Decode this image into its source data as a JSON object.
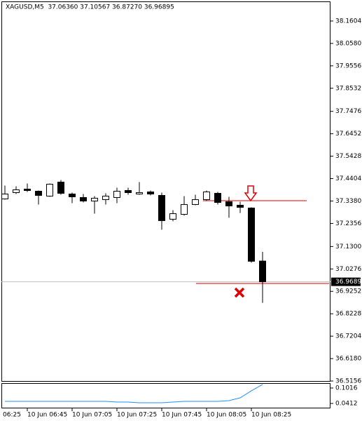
{
  "chart_data": [
    {
      "type": "candlestick",
      "title": "XAGUSD,M5  37.06360 37.10567 36.87270 36.96895",
      "categories": [
        "06:25",
        null,
        null,
        null,
        "10 Jun 06:45",
        null,
        null,
        null,
        "10 Jun 07:05",
        null,
        null,
        null,
        "10 Jun 07:25",
        null,
        null,
        null,
        "10 Jun 07:45",
        null,
        null,
        null,
        "10 Jun 08:05",
        null,
        null,
        null,
        "10 Jun 08:25",
        null
      ],
      "open": [
        null,
        null,
        37.3476,
        37.3764,
        37.3924,
        37.3828,
        37.3604,
        37.4244,
        37.37,
        37.354,
        37.338,
        37.3444,
        37.354,
        37.386,
        37.37,
        37.3796,
        37.3636,
        37.2548,
        37.2772,
        37.322,
        37.3444,
        37.3732,
        37.3348,
        37.3188,
        37.306,
        37.0636
      ],
      "high": [
        null,
        null,
        37.4084,
        37.4052,
        37.418,
        37.386,
        37.418,
        37.434,
        37.3764,
        37.37,
        37.3604,
        37.3732,
        37.3988,
        37.3988,
        37.4244,
        37.386,
        37.3764,
        37.2964,
        37.3604,
        37.3668,
        37.386,
        37.3796,
        37.3572,
        37.3348,
        37.3092,
        37.10567
      ],
      "low": [
        null,
        null,
        37.3444,
        37.37,
        37.3796,
        37.322,
        37.3572,
        37.3668,
        37.3284,
        37.3316,
        37.2804,
        37.322,
        37.3284,
        37.3668,
        37.3668,
        37.3636,
        37.2068,
        37.2452,
        37.2708,
        37.3188,
        37.338,
        37.322,
        37.2612,
        37.2836,
        37.0564,
        36.8727
      ],
      "close": [
        null,
        null,
        37.37,
        37.3892,
        37.386,
        37.3636,
        37.4148,
        37.3732,
        37.3572,
        37.338,
        37.3508,
        37.3604,
        37.3828,
        37.3764,
        37.3764,
        37.37,
        37.2484,
        37.2804,
        37.322,
        37.3444,
        37.3796,
        37.3316,
        37.3156,
        37.3092,
        37.0628,
        36.96895
      ],
      "up_color": "#ffffff",
      "down_color": "#000000",
      "ylim": [
        36.5124,
        38.25
      ],
      "yticks": [
        38.1604,
        {
          "value": 38.058,
          "label": "38.0580"
        },
        37.9556,
        37.8532,
        37.7476,
        37.6452,
        37.5428,
        37.4404,
        {
          "value": 37.338,
          "label": "37.3380"
        },
        37.2356,
        {
          "value": 37.13,
          "label": "37.1300"
        },
        37.0276,
        36.9252,
        36.8228,
        36.7204,
        {
          "value": 36.618,
          "label": "36.6180"
        },
        36.5156
      ],
      "current_price": 36.9689
    },
    {
      "type": "line",
      "values": [
        null,
        null,
        0.0494,
        0.0494,
        0.0494,
        0.0494,
        0.0494,
        0.0494,
        0.0494,
        0.0494,
        0.0494,
        0.0494,
        0.0467,
        0.0467,
        0.044,
        0.044,
        0.044,
        0.0467,
        0.0494,
        0.0494,
        0.0494,
        0.0494,
        0.0521,
        0.0631,
        0.0906,
        0.1153
      ],
      "color": "#1e90ff",
      "ylim": [
        0.0247,
        0.118
      ],
      "yticks": [
        0.1016,
        0.0412
      ]
    }
  ]
}
